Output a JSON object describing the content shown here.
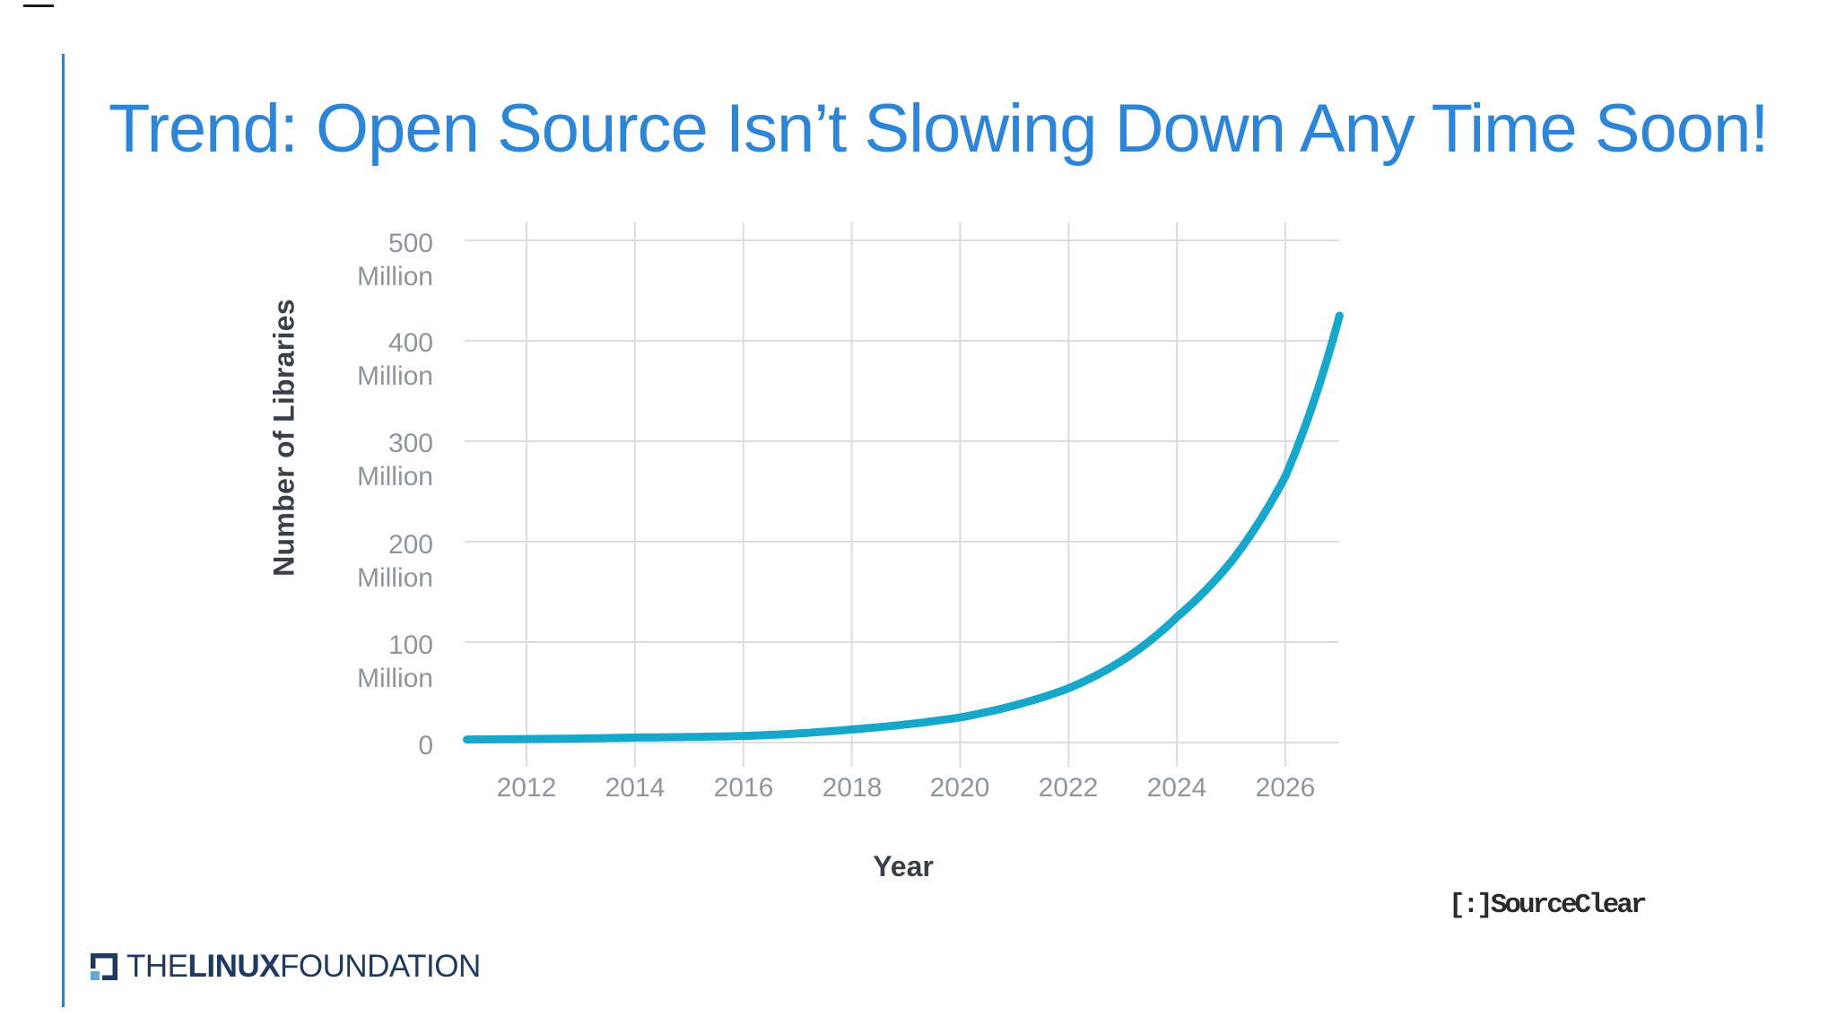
{
  "slide": {
    "title": "Trend: Open Source Isn’t Slowing Down Any Time Soon!",
    "title_color": "#2C85D7",
    "accent_bar_color": "#2F80CF"
  },
  "chart": {
    "y_axis_title": "Number of Libraries",
    "x_axis_title": "Year",
    "y_ticks": [
      {
        "label": "500",
        "unit": "Million",
        "value": 500
      },
      {
        "label": "400",
        "unit": "Million",
        "value": 400
      },
      {
        "label": "300",
        "unit": "Million",
        "value": 300
      },
      {
        "label": "200",
        "unit": "Million",
        "value": 200
      },
      {
        "label": "100",
        "unit": "Million",
        "value": 100
      },
      {
        "label": "0",
        "unit": "",
        "value": 0
      }
    ],
    "x_ticks": [
      "2012",
      "2014",
      "2016",
      "2018",
      "2020",
      "2022",
      "2024",
      "2026"
    ],
    "grid_color": "#DBDBE1",
    "tick_text_color": "#8F959E"
  },
  "chart_data": {
    "type": "line",
    "title": "",
    "xlabel": "Year",
    "ylabel": "Number of Libraries",
    "x": [
      2010.9,
      2012,
      2013,
      2014,
      2015,
      2016,
      2017,
      2018,
      2019,
      2020,
      2021,
      2022,
      2023,
      2024,
      2025,
      2026,
      2027
    ],
    "values_millions": [
      3,
      3.5,
      4,
      5,
      5.5,
      6.5,
      9,
      13,
      18,
      25,
      37,
      54,
      82,
      125,
      180,
      265,
      425
    ],
    "series": [
      {
        "name": "Number of Libraries (Millions)",
        "color": "#17A7CB",
        "style": "smooth-exponential"
      }
    ],
    "xlim": [
      2010.9,
      2027
    ],
    "ylim": [
      0,
      500
    ],
    "y_unit": "Million",
    "grid": true,
    "legend": "none",
    "line_color": "#17A7CB"
  },
  "footer": {
    "sourceclear_text": "[:]SourceClear",
    "linux_foundation": {
      "the": "THE",
      "linux": "LINUX",
      "foundation": "FOUNDATION",
      "navy": "#1F3A5E",
      "light_blue": "#5FA9DC"
    }
  }
}
